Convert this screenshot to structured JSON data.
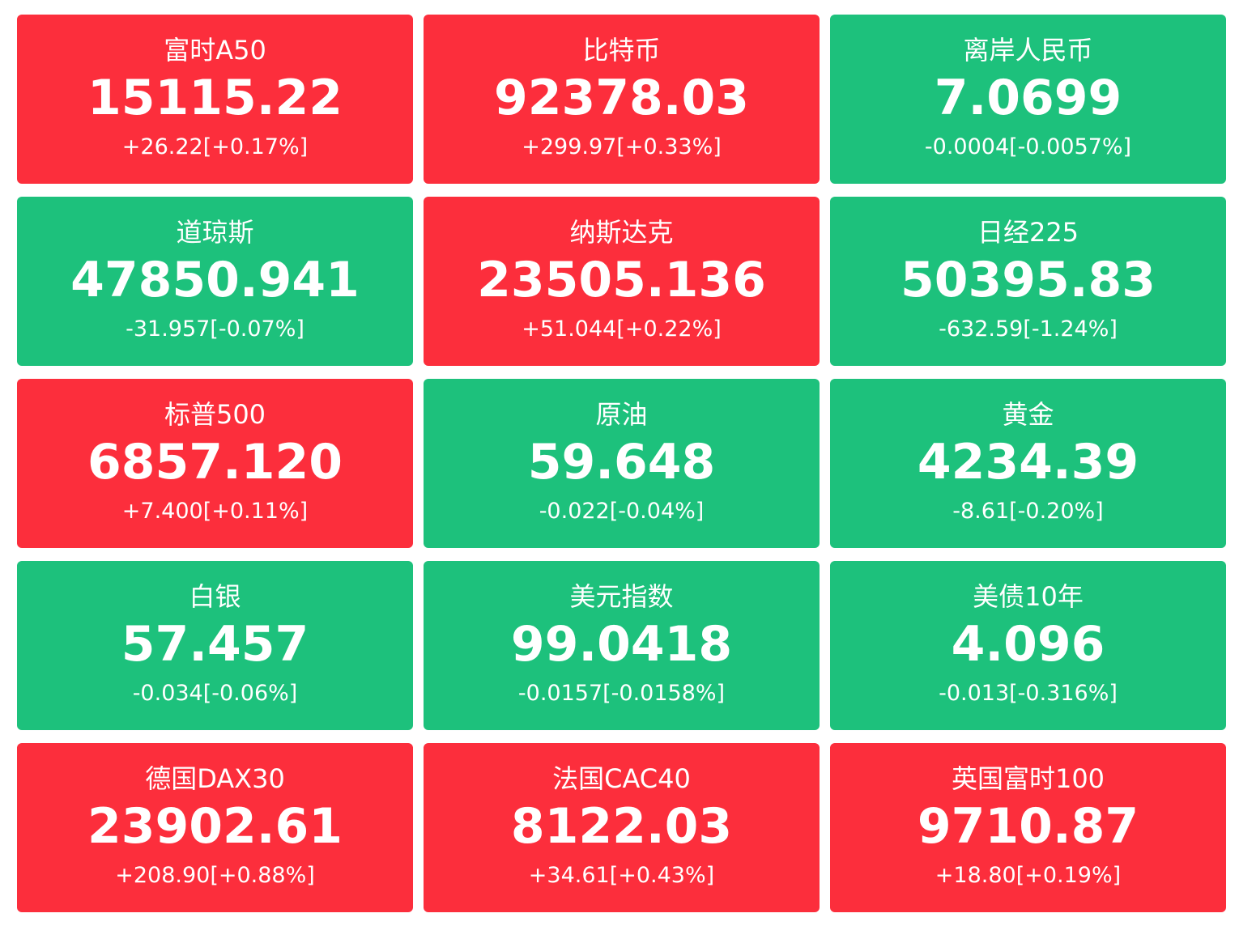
{
  "colors": {
    "up": "#fc2e3c",
    "down": "#1dc17c",
    "text": "#ffffff"
  },
  "tiles": [
    {
      "name": "富时A50",
      "value": "15115.22",
      "change": "+26.22[+0.17%]",
      "trend": "up"
    },
    {
      "name": "比特币",
      "value": "92378.03",
      "change": "+299.97[+0.33%]",
      "trend": "up"
    },
    {
      "name": "离岸人民币",
      "value": "7.0699",
      "change": "-0.0004[-0.0057%]",
      "trend": "down"
    },
    {
      "name": "道琼斯",
      "value": "47850.941",
      "change": "-31.957[-0.07%]",
      "trend": "down"
    },
    {
      "name": "纳斯达克",
      "value": "23505.136",
      "change": "+51.044[+0.22%]",
      "trend": "up"
    },
    {
      "name": "日经225",
      "value": "50395.83",
      "change": "-632.59[-1.24%]",
      "trend": "down"
    },
    {
      "name": "标普500",
      "value": "6857.120",
      "change": "+7.400[+0.11%]",
      "trend": "up"
    },
    {
      "name": "原油",
      "value": "59.648",
      "change": "-0.022[-0.04%]",
      "trend": "down"
    },
    {
      "name": "黄金",
      "value": "4234.39",
      "change": "-8.61[-0.20%]",
      "trend": "down"
    },
    {
      "name": "白银",
      "value": "57.457",
      "change": "-0.034[-0.06%]",
      "trend": "down"
    },
    {
      "name": "美元指数",
      "value": "99.0418",
      "change": "-0.0157[-0.0158%]",
      "trend": "down"
    },
    {
      "name": "美债10年",
      "value": "4.096",
      "change": "-0.013[-0.316%]",
      "trend": "down"
    },
    {
      "name": "德国DAX30",
      "value": "23902.61",
      "change": "+208.90[+0.88%]",
      "trend": "up"
    },
    {
      "name": "法国CAC40",
      "value": "8122.03",
      "change": "+34.61[+0.43%]",
      "trend": "up"
    },
    {
      "name": "英国富时100",
      "value": "9710.87",
      "change": "+18.80[+0.19%]",
      "trend": "up"
    }
  ]
}
